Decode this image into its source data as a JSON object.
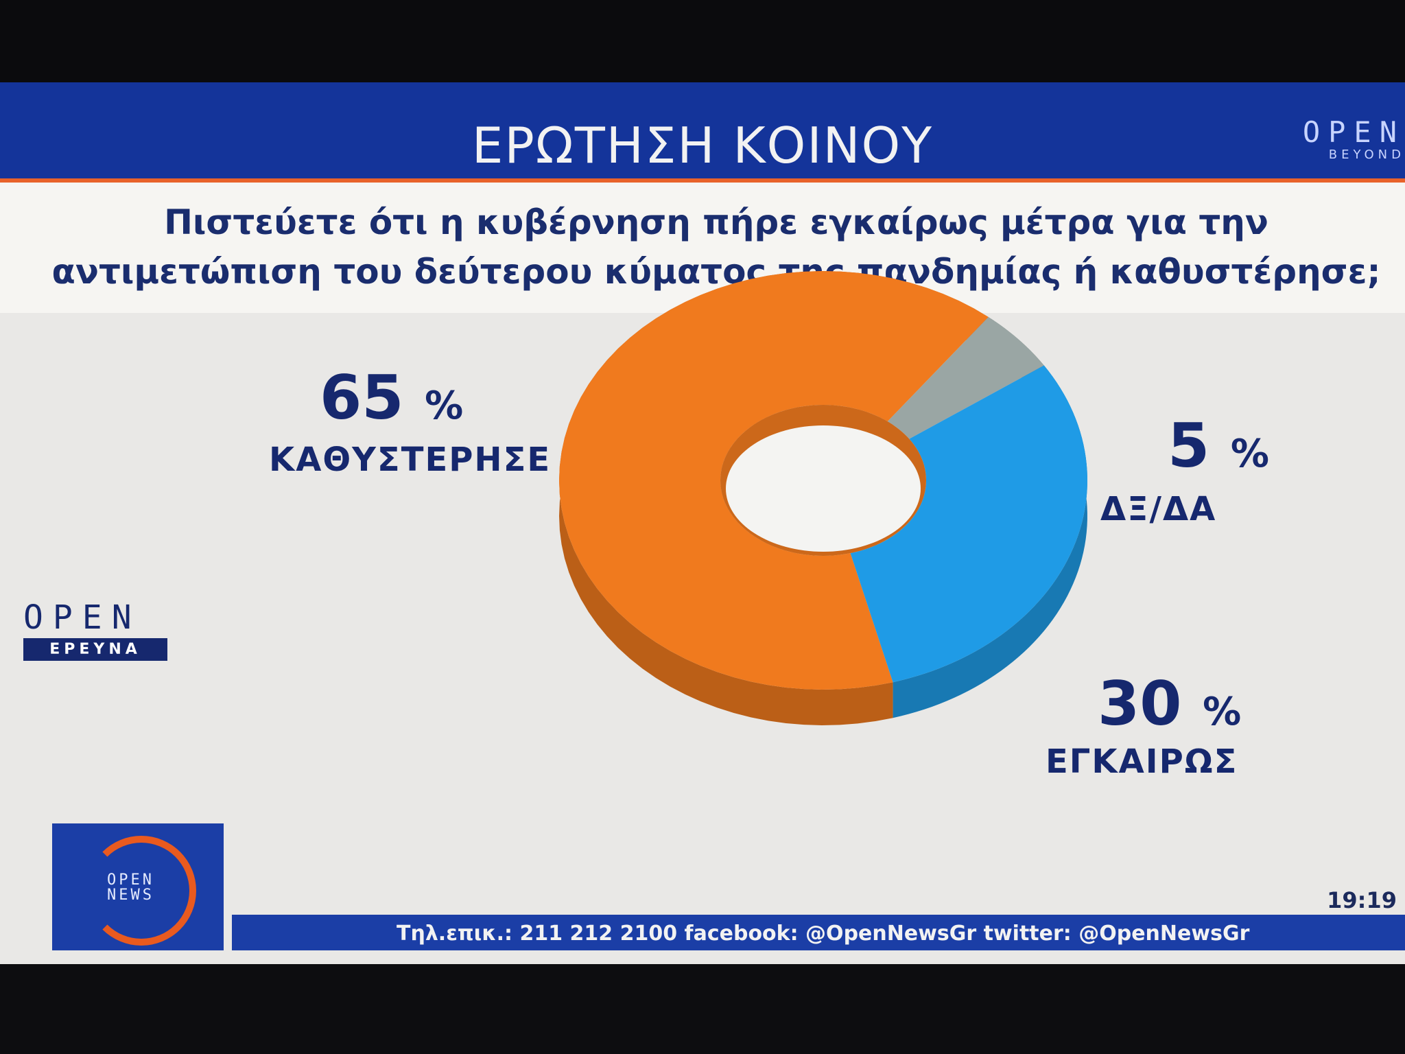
{
  "banner": {
    "title": "ΕΡΩΤΗΣΗ ΚΟΙΝΟΥ"
  },
  "logo_top": {
    "open": "OPEN",
    "beyond": "BEYOND"
  },
  "question": {
    "text": "Πιστεύετε ότι η κυβέρνηση πήρε εγκαίρως μέτρα για την αντιμετώπιση του δεύτερου κύματος της πανδημίας ή καθυστέρησε;"
  },
  "chart_data": {
    "type": "pie",
    "style": "3D donut",
    "slices": [
      {
        "label": "ΚΑΘΥΣΤΕΡΗΣΕ",
        "value": 65,
        "value_label": "65",
        "color": "#f07a1e"
      },
      {
        "label": "ΔΞ/ΔΑ",
        "value": 5,
        "value_label": "5",
        "color": "#9aa6a4"
      },
      {
        "label": "ΕΓΚΑΙΡΩΣ",
        "value": 30,
        "value_label": "30",
        "color": "#1f9be6"
      }
    ],
    "unit": "%"
  },
  "logo_ereyna": {
    "open": "OPEN",
    "ereyna": "ΕΡΕΥΝΑ"
  },
  "news_logo": {
    "line1": "OPEN",
    "line2": "NEWS"
  },
  "ticker": {
    "info": "Τηλ.επικ.: 211 212 2100 facebook: @OpenNewsGr twitter: @OpenNewsGr",
    "time": "19:19"
  },
  "colors": {
    "banner": "#14349a",
    "accent": "#e8622a",
    "text": "#16286e"
  }
}
